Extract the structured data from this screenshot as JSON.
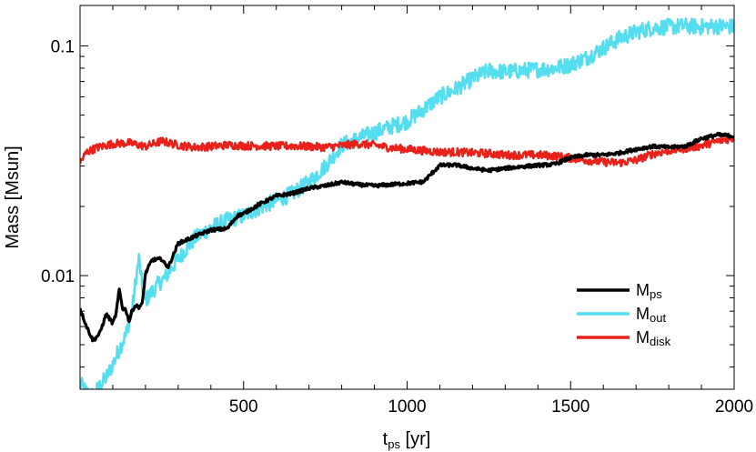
{
  "chart_data": {
    "type": "line",
    "xlabel": {
      "main": "t",
      "sub": "ps",
      "suffix": " [yr]"
    },
    "ylabel": "Mass [Msun]",
    "yscale": "log",
    "xlim": [
      0,
      2000
    ],
    "ylim": [
      0.0032,
      0.15
    ],
    "xticks": [
      {
        "value": 500,
        "label": "500"
      },
      {
        "value": 1000,
        "label": "1000"
      },
      {
        "value": 1500,
        "label": "1500"
      },
      {
        "value": 2000,
        "label": "2000"
      }
    ],
    "yticks": [
      {
        "value": 0.01,
        "label": "0.01"
      },
      {
        "value": 0.1,
        "label": "0.1"
      }
    ],
    "grid": false,
    "legend_position": "bottom-right",
    "series": [
      {
        "name": "ps",
        "color": "#000000",
        "x": [
          0,
          20,
          40,
          60,
          80,
          100,
          110,
          120,
          130,
          140,
          150,
          160,
          170,
          180,
          190,
          200,
          220,
          250,
          260,
          270,
          280,
          300,
          350,
          400,
          450,
          480,
          500,
          550,
          600,
          650,
          700,
          750,
          800,
          850,
          900,
          950,
          1000,
          1050,
          1100,
          1150,
          1200,
          1250,
          1300,
          1350,
          1400,
          1450,
          1500,
          1550,
          1600,
          1650,
          1700,
          1750,
          1800,
          1850,
          1900,
          1950,
          2000
        ],
        "y": [
          0.0072,
          0.006,
          0.0052,
          0.0056,
          0.0068,
          0.0062,
          0.0068,
          0.0087,
          0.0072,
          0.0071,
          0.0063,
          0.0071,
          0.0074,
          0.0073,
          0.0075,
          0.0102,
          0.0117,
          0.0118,
          0.0112,
          0.0109,
          0.0118,
          0.0138,
          0.0148,
          0.0158,
          0.016,
          0.0182,
          0.0186,
          0.0205,
          0.0222,
          0.0228,
          0.024,
          0.0246,
          0.0255,
          0.0249,
          0.0246,
          0.0249,
          0.0252,
          0.0256,
          0.0302,
          0.0303,
          0.0293,
          0.0287,
          0.0293,
          0.0298,
          0.0302,
          0.0305,
          0.0326,
          0.0335,
          0.0335,
          0.0342,
          0.0355,
          0.0365,
          0.0362,
          0.0365,
          0.0395,
          0.041,
          0.0405
        ]
      },
      {
        "name": "out",
        "color": "#55ddf0",
        "x": [
          0,
          20,
          40,
          60,
          80,
          100,
          120,
          140,
          160,
          170,
          180,
          190,
          200,
          220,
          240,
          260,
          280,
          300,
          350,
          400,
          450,
          500,
          550,
          600,
          650,
          700,
          750,
          800,
          850,
          900,
          950,
          1000,
          1050,
          1100,
          1150,
          1200,
          1250,
          1300,
          1350,
          1400,
          1450,
          1500,
          1550,
          1600,
          1650,
          1700,
          1750,
          1800,
          1850,
          1900,
          1950,
          2000
        ],
        "y": [
          0.0034,
          0.0031,
          0.003,
          0.0033,
          0.0036,
          0.0041,
          0.0048,
          0.0055,
          0.0072,
          0.0095,
          0.0118,
          0.009,
          0.0078,
          0.0085,
          0.0092,
          0.0098,
          0.0108,
          0.0118,
          0.0145,
          0.0162,
          0.0174,
          0.0182,
          0.0198,
          0.0212,
          0.0228,
          0.0255,
          0.03,
          0.037,
          0.0395,
          0.042,
          0.0445,
          0.047,
          0.053,
          0.06,
          0.065,
          0.072,
          0.078,
          0.077,
          0.078,
          0.079,
          0.08,
          0.083,
          0.089,
          0.098,
          0.108,
          0.115,
          0.12,
          0.121,
          0.122,
          0.121,
          0.122,
          0.121
        ]
      },
      {
        "name": "disk",
        "color": "#e8221b",
        "x": [
          0,
          20,
          50,
          100,
          150,
          200,
          250,
          300,
          350,
          400,
          450,
          500,
          550,
          600,
          650,
          700,
          750,
          800,
          850,
          900,
          950,
          1000,
          1050,
          1100,
          1150,
          1200,
          1250,
          1300,
          1350,
          1400,
          1450,
          1500,
          1550,
          1600,
          1650,
          1700,
          1750,
          1800,
          1850,
          1900,
          1950,
          2000
        ],
        "y": [
          0.031,
          0.0345,
          0.036,
          0.0375,
          0.0378,
          0.0365,
          0.0385,
          0.037,
          0.0362,
          0.0365,
          0.037,
          0.0368,
          0.0367,
          0.0366,
          0.0367,
          0.0365,
          0.0362,
          0.0368,
          0.0375,
          0.037,
          0.036,
          0.0355,
          0.035,
          0.0345,
          0.0345,
          0.0342,
          0.034,
          0.0335,
          0.0335,
          0.0335,
          0.0332,
          0.0325,
          0.0318,
          0.0312,
          0.031,
          0.0318,
          0.0338,
          0.035,
          0.0358,
          0.0368,
          0.0385,
          0.0398
        ]
      }
    ]
  },
  "legend": {
    "items": [
      {
        "prefix": "M",
        "sub": "ps"
      },
      {
        "prefix": "M",
        "sub": "out"
      },
      {
        "prefix": "M",
        "sub": "disk"
      }
    ]
  }
}
